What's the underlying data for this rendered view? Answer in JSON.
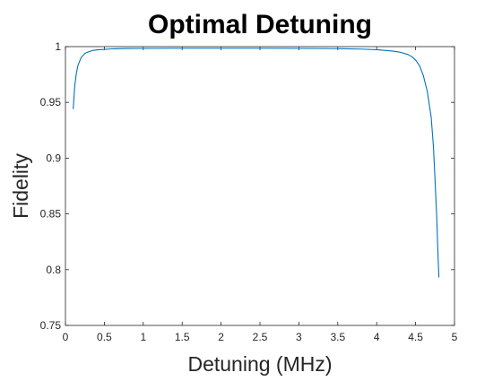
{
  "colors": {
    "background": "#ffffff",
    "axes": "#262626",
    "series": "#0072bd"
  },
  "chart_data": {
    "type": "line",
    "title": "Optimal Detuning",
    "xlabel": "Detuning (MHz)",
    "ylabel": "Fidelity",
    "xlim": [
      0,
      5
    ],
    "ylim": [
      0.75,
      1
    ],
    "grid": false,
    "box": true,
    "x_ticks": [
      0,
      0.5,
      1,
      1.5,
      2,
      2.5,
      3,
      3.5,
      4,
      4.5,
      5
    ],
    "x_tick_labels": [
      "0",
      "0.5",
      "1",
      "1.5",
      "2",
      "2.5",
      "3",
      "3.5",
      "4",
      "4.5",
      "5"
    ],
    "y_ticks": [
      0.75,
      0.8,
      0.85,
      0.9,
      0.95,
      1
    ],
    "y_tick_labels": [
      "0.75",
      "0.8",
      "0.85",
      "0.9",
      "0.95",
      "1"
    ],
    "series": [
      {
        "x": [
          0.1,
          0.11,
          0.12,
          0.14,
          0.16,
          0.2,
          0.25,
          0.3,
          0.35,
          0.4,
          0.5,
          0.6,
          0.8,
          1.0,
          1.5,
          2.0,
          2.5,
          3.0,
          3.5,
          3.8,
          4.0,
          4.2,
          4.3,
          4.4,
          4.45,
          4.5,
          4.55,
          4.6,
          4.65,
          4.7,
          4.73,
          4.75,
          4.77,
          4.79,
          4.8
        ],
        "y": [
          0.944,
          0.955,
          0.965,
          0.976,
          0.983,
          0.99,
          0.994,
          0.9955,
          0.9965,
          0.997,
          0.9975,
          0.998,
          0.9983,
          0.9984,
          0.9985,
          0.9985,
          0.9985,
          0.9984,
          0.9982,
          0.9978,
          0.9972,
          0.996,
          0.995,
          0.993,
          0.991,
          0.988,
          0.983,
          0.974,
          0.96,
          0.937,
          0.91,
          0.88,
          0.85,
          0.81,
          0.793
        ]
      }
    ]
  }
}
